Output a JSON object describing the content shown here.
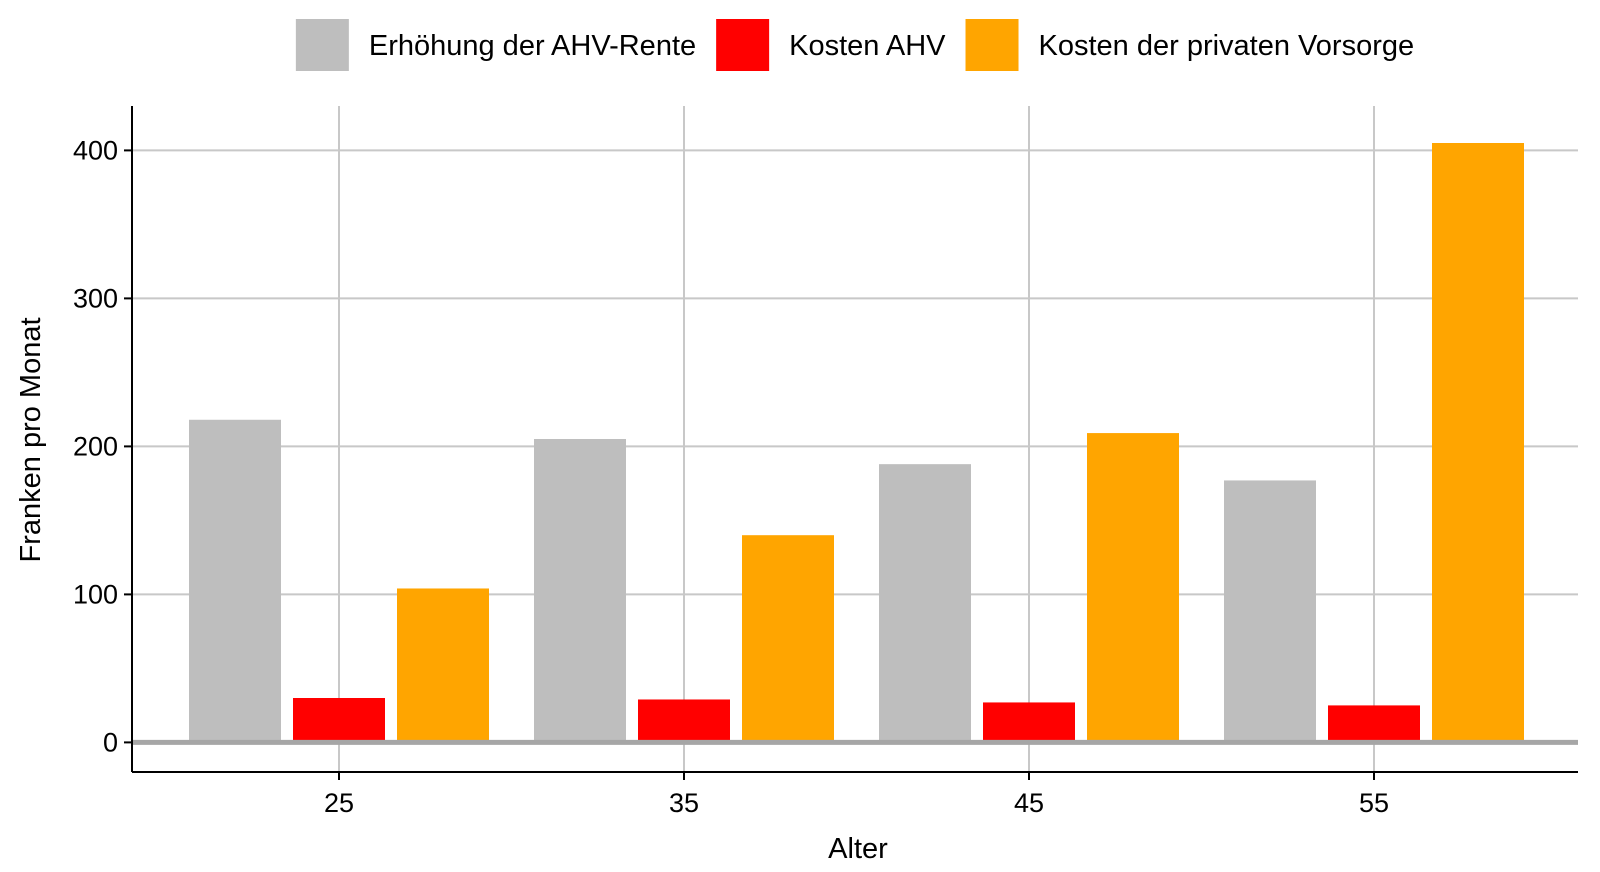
{
  "chart_data": {
    "type": "bar",
    "title": "",
    "xlabel": "Alter",
    "ylabel": "Franken pro Monat",
    "categories": [
      "25",
      "35",
      "45",
      "55"
    ],
    "series": [
      {
        "name": "Erhöhung der AHV-Rente",
        "color": "#bebebe",
        "values": [
          218,
          205,
          188,
          177
        ]
      },
      {
        "name": "Kosten AHV",
        "color": "#ff0000",
        "values": [
          30,
          29,
          27,
          25
        ]
      },
      {
        "name": "Kosten der privaten Vorsorge",
        "color": "#ffa500",
        "values": [
          104,
          140,
          209,
          405
        ]
      }
    ],
    "ylim": [
      -20,
      430
    ],
    "yticks": [
      0,
      100,
      200,
      300,
      400
    ],
    "grid": true,
    "legend_position": "top"
  }
}
